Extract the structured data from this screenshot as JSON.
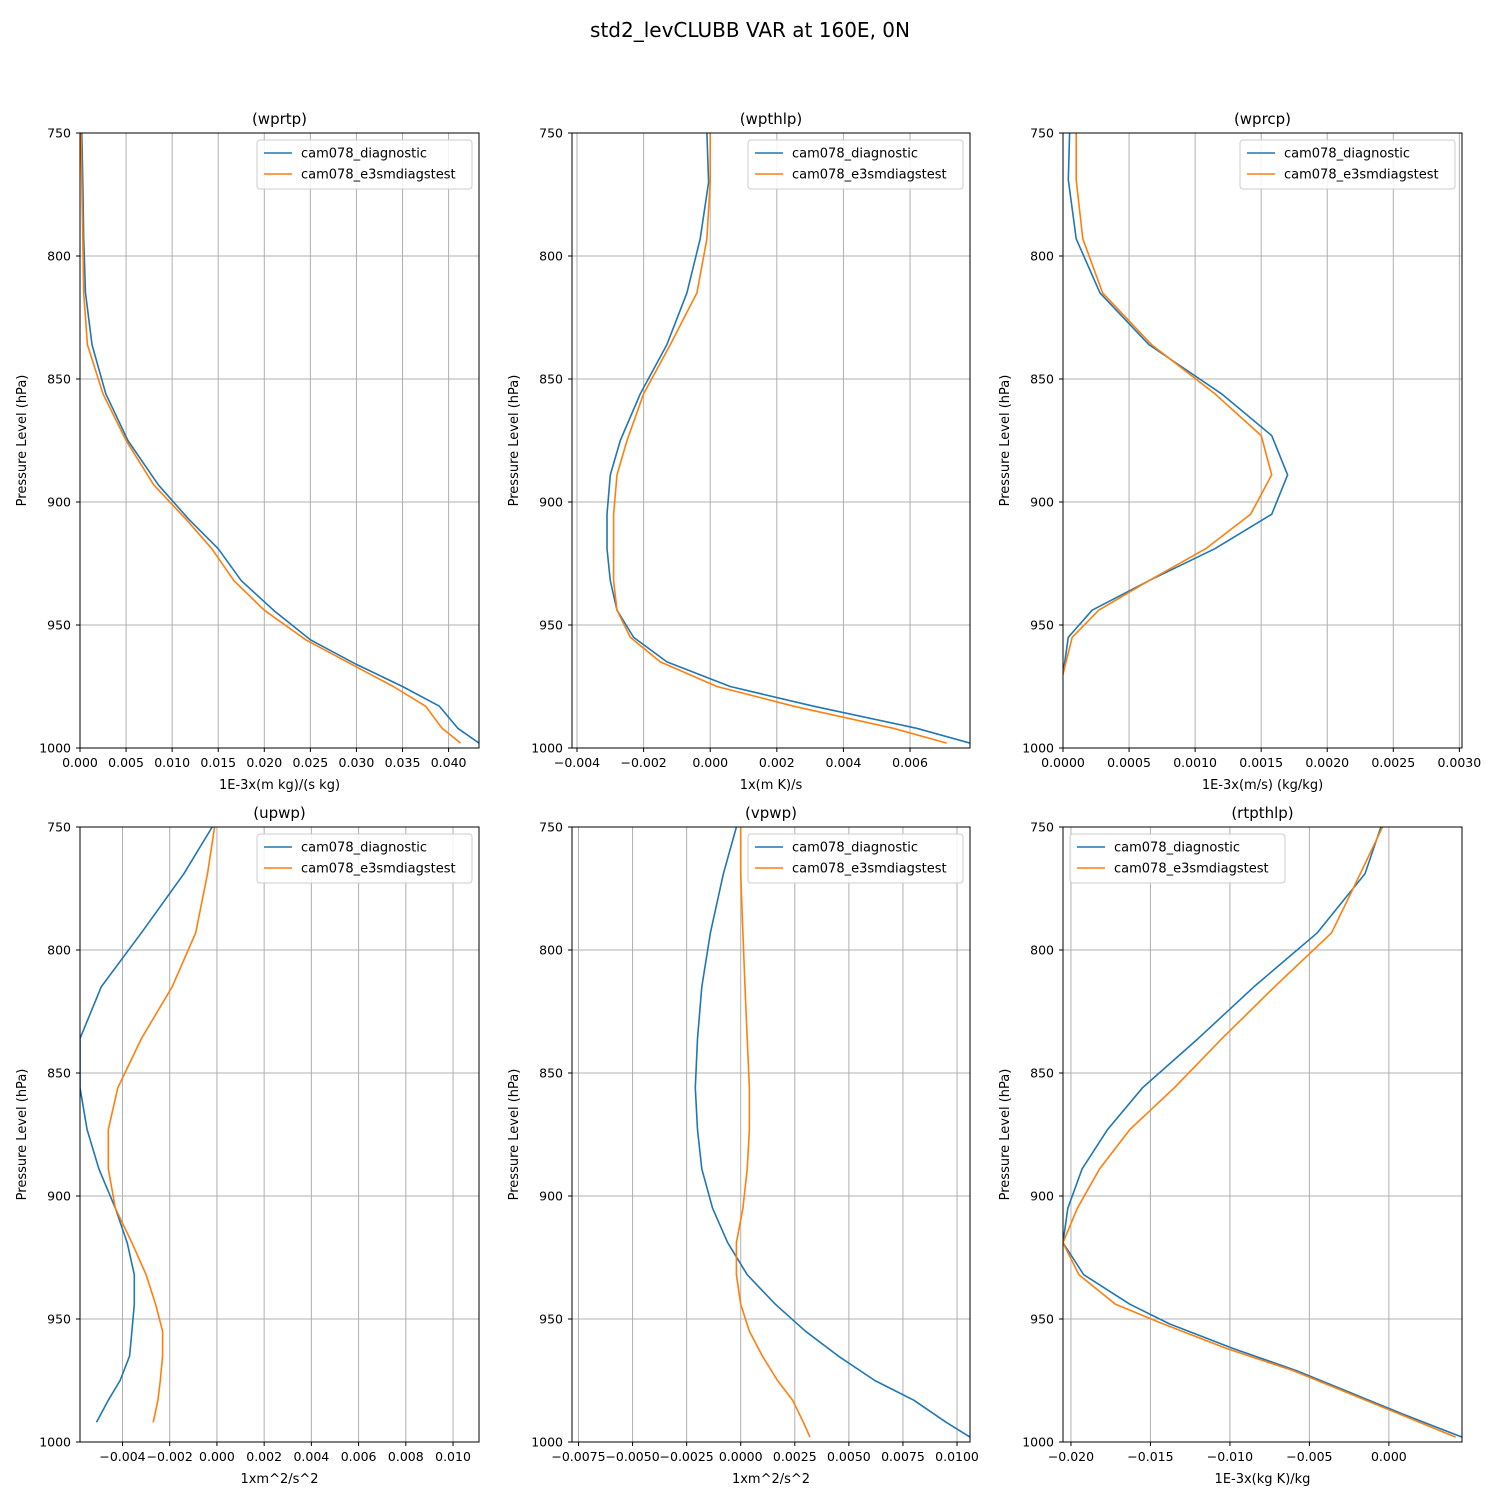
{
  "figure": {
    "suptitle": "std2_levCLUBB VAR at 160E, 0N"
  },
  "colors": {
    "cam078_diagnostic": "#1f77b4",
    "cam078_e3smdiagstest": "#ff7f0e",
    "grid": "#b0b0b0"
  },
  "chart_data": [
    {
      "type": "line",
      "title": "(wprtp)",
      "xlabel": "1E-3x(m kg)/(s kg)",
      "ylabel": "Pressure Level (hPa)",
      "xlim": [
        0,
        0.0433
      ],
      "ylim": [
        1000,
        750
      ],
      "xticks": [
        0,
        0.005,
        0.01,
        0.015,
        0.02,
        0.025,
        0.03,
        0.035,
        0.04
      ],
      "xticklabels": [
        "0.000",
        "0.005",
        "0.010",
        "0.015",
        "0.020",
        "0.025",
        "0.030",
        "0.035",
        "0.040"
      ],
      "yticks": [
        750,
        800,
        850,
        900,
        950,
        1000
      ],
      "grid": true,
      "legend": "top-right",
      "series": [
        {
          "name": "cam078_diagnostic",
          "x": [
            0.0002,
            0.0003,
            0.0004,
            0.0006,
            0.0013,
            0.0028,
            0.0052,
            0.0085,
            0.0118,
            0.015,
            0.0175,
            0.021,
            0.025,
            0.03,
            0.035,
            0.039,
            0.041,
            0.0433
          ],
          "y": [
            750,
            770,
            793,
            815,
            836,
            856,
            875,
            893,
            907,
            919,
            932,
            944,
            956,
            966,
            975,
            983,
            992,
            998
          ]
        },
        {
          "name": "cam078_e3smdiagstest",
          "x": [
            0.0001,
            0.0002,
            0.0003,
            0.0004,
            0.0008,
            0.0025,
            0.005,
            0.008,
            0.0115,
            0.0143,
            0.0167,
            0.02,
            0.0245,
            0.0295,
            0.034,
            0.0375,
            0.0393,
            0.0413
          ],
          "y": [
            750,
            770,
            793,
            815,
            836,
            856,
            875,
            893,
            907,
            919,
            932,
            944,
            956,
            966,
            975,
            983,
            992,
            998
          ]
        }
      ]
    },
    {
      "type": "line",
      "title": "(wpthlp)",
      "xlabel": "1x(m K)/s",
      "ylabel": "Pressure Level (hPa)",
      "xlim": [
        -0.00415,
        0.0078
      ],
      "ylim": [
        1000,
        750
      ],
      "xticks": [
        -0.004,
        -0.002,
        0,
        0.002,
        0.004,
        0.006
      ],
      "xticklabels": [
        "−0.004",
        "−0.002",
        "0.000",
        "0.002",
        "0.004",
        "0.006"
      ],
      "yticks": [
        750,
        800,
        850,
        900,
        950,
        1000
      ],
      "grid": true,
      "legend": "top-right",
      "series": [
        {
          "name": "cam078_diagnostic",
          "x": [
            -0.0001,
            -5e-05,
            -0.0003,
            -0.0007,
            -0.0013,
            -0.0021,
            -0.0027,
            -0.003,
            -0.0031,
            -0.0031,
            -0.003,
            -0.0028,
            -0.0023,
            -0.0013,
            0.0006,
            0.0031,
            0.0062,
            0.0078
          ],
          "y": [
            750,
            770,
            793,
            815,
            836,
            856,
            875,
            889,
            905,
            919,
            932,
            944,
            955,
            965,
            975,
            983,
            992,
            998
          ]
        },
        {
          "name": "cam078_e3smdiagstest",
          "x": [
            0.0,
            0.0,
            -0.0001,
            -0.0004,
            -0.0012,
            -0.002,
            -0.0025,
            -0.0028,
            -0.0029,
            -0.0029,
            -0.0029,
            -0.0028,
            -0.0024,
            -0.0015,
            0.0002,
            0.0025,
            0.0055,
            0.0071
          ],
          "y": [
            750,
            770,
            793,
            815,
            836,
            856,
            875,
            889,
            905,
            919,
            932,
            944,
            955,
            965,
            975,
            983,
            992,
            998
          ]
        }
      ]
    },
    {
      "type": "line",
      "title": "(wprcp)",
      "xlabel": "1E-3x(m/s) (kg/kg)",
      "ylabel": "Pressure Level (hPa)",
      "xlim": [
        0,
        0.00302
      ],
      "ylim": [
        1000,
        750
      ],
      "xticks": [
        0,
        0.0005,
        0.001,
        0.0015,
        0.002,
        0.0025,
        0.003
      ],
      "xticklabels": [
        "0.0000",
        "0.0005",
        "0.0010",
        "0.0015",
        "0.0020",
        "0.0025",
        "0.0030"
      ],
      "yticks": [
        750,
        800,
        850,
        900,
        950,
        1000
      ],
      "grid": true,
      "legend": "top-right",
      "series": [
        {
          "name": "cam078_diagnostic",
          "x": [
            5e-05,
            4e-05,
            0.0001,
            0.00028,
            0.00065,
            0.0012,
            0.00158,
            0.0017,
            0.00158,
            0.00115,
            0.00065,
            0.00022,
            4e-05,
            0.0
          ],
          "y": [
            750,
            769,
            793,
            815,
            836,
            856,
            873,
            889,
            905,
            919,
            932,
            944,
            955,
            970
          ]
        },
        {
          "name": "cam078_e3smdiagstest",
          "x": [
            0.0001,
            0.0001,
            0.00015,
            0.0003,
            0.00067,
            0.00115,
            0.0015,
            0.00158,
            0.00142,
            0.00108,
            0.00065,
            0.00027,
            7e-05,
            0.0
          ],
          "y": [
            750,
            769,
            793,
            815,
            836,
            856,
            873,
            889,
            905,
            919,
            932,
            944,
            955,
            970
          ]
        }
      ]
    },
    {
      "type": "line",
      "title": "(upwp)",
      "xlabel": "1xm^2/s^2",
      "ylabel": "Pressure Level (hPa)",
      "xlim": [
        -0.0058,
        0.0111
      ],
      "ylim": [
        1000,
        750
      ],
      "xticks": [
        -0.004,
        -0.002,
        0,
        0.002,
        0.004,
        0.006,
        0.008,
        0.01
      ],
      "xticklabels": [
        "−0.004",
        "−0.002",
        "0.000",
        "0.002",
        "0.004",
        "0.006",
        "0.008",
        "0.010"
      ],
      "yticks": [
        750,
        800,
        850,
        900,
        950,
        1000
      ],
      "grid": true,
      "legend": "top-right",
      "series": [
        {
          "name": "cam078_diagnostic",
          "x": [
            -0.0002,
            -0.0014,
            -0.0032,
            -0.0049,
            -0.0058,
            -0.0058,
            -0.0055,
            -0.005,
            -0.0043,
            -0.0038,
            -0.0035,
            -0.0035,
            -0.0036,
            -0.0037,
            -0.0041,
            -0.0046,
            -0.0051
          ],
          "y": [
            750,
            769,
            793,
            815,
            836,
            856,
            873,
            889,
            905,
            919,
            932,
            944,
            955,
            965,
            975,
            983,
            992
          ]
        },
        {
          "name": "cam078_e3smdiagstest",
          "x": [
            -0.0001,
            -0.0004,
            -0.0009,
            -0.0019,
            -0.0032,
            -0.0042,
            -0.0046,
            -0.0046,
            -0.0043,
            -0.0036,
            -0.003,
            -0.0026,
            -0.0023,
            -0.0023,
            -0.0024,
            -0.0025,
            -0.0027
          ],
          "y": [
            750,
            769,
            793,
            815,
            836,
            856,
            873,
            889,
            905,
            919,
            932,
            944,
            955,
            965,
            975,
            983,
            992
          ]
        }
      ]
    },
    {
      "type": "line",
      "title": "(vpwp)",
      "xlabel": "1xm^2/s^2",
      "ylabel": "Pressure Level (hPa)",
      "xlim": [
        -0.0078,
        0.0106
      ],
      "ylim": [
        1000,
        750
      ],
      "xticks": [
        -0.0075,
        -0.005,
        -0.0025,
        0,
        0.0025,
        0.005,
        0.0075,
        0.01
      ],
      "xticklabels": [
        "−0.0075",
        "−0.0050",
        "−0.0025",
        "0.0000",
        "0.0025",
        "0.0050",
        "0.0075",
        "0.0100"
      ],
      "yticks": [
        750,
        800,
        850,
        900,
        950,
        1000
      ],
      "grid": true,
      "legend": "top-right",
      "series": [
        {
          "name": "cam078_diagnostic",
          "x": [
            -0.0002,
            -0.0008,
            -0.0014,
            -0.0018,
            -0.002,
            -0.0021,
            -0.002,
            -0.0018,
            -0.0013,
            -0.0006,
            0.0003,
            0.0016,
            0.003,
            0.0045,
            0.0062,
            0.008,
            0.0095,
            0.0106
          ],
          "y": [
            750,
            769,
            793,
            815,
            836,
            856,
            873,
            889,
            905,
            919,
            932,
            944,
            955,
            965,
            975,
            983,
            992,
            998
          ]
        },
        {
          "name": "cam078_e3smdiagstest",
          "x": [
            0.0,
            0.0,
            0.0001,
            0.0002,
            0.0003,
            0.0004,
            0.0004,
            0.0003,
            0.0001,
            -0.0002,
            -0.0002,
            0.0,
            0.0004,
            0.001,
            0.0017,
            0.0024,
            0.0029,
            0.0032
          ],
          "y": [
            750,
            769,
            793,
            815,
            836,
            856,
            873,
            889,
            905,
            919,
            932,
            944,
            955,
            965,
            975,
            983,
            992,
            998
          ]
        }
      ]
    },
    {
      "type": "line",
      "title": "(rtpthlp)",
      "xlabel": "1E-3x(kg K)/kg",
      "ylabel": "Pressure Level (hPa)",
      "xlim": [
        -0.0205,
        0.0046
      ],
      "ylim": [
        1000,
        750
      ],
      "xticks": [
        -0.02,
        -0.015,
        -0.01,
        -0.005,
        0
      ],
      "xticklabels": [
        "−0.020",
        "−0.015",
        "−0.010",
        "−0.005",
        "0.000"
      ],
      "yticks": [
        750,
        800,
        850,
        900,
        950,
        1000
      ],
      "grid": true,
      "legend": "top-left",
      "series": [
        {
          "name": "cam078_diagnostic",
          "x": [
            -0.0005,
            -0.0015,
            -0.0045,
            -0.0085,
            -0.012,
            -0.0155,
            -0.0177,
            -0.0193,
            -0.0202,
            -0.0205,
            -0.0192,
            -0.0163,
            -0.0138,
            -0.0098,
            -0.0058,
            -0.0024,
            0.001,
            0.0046
          ],
          "y": [
            750,
            769,
            793,
            815,
            836,
            856,
            873,
            889,
            905,
            919,
            932,
            944,
            952,
            962,
            971,
            980,
            989,
            998
          ]
        },
        {
          "name": "cam078_e3smdiagstest",
          "x": [
            -0.0004,
            -0.0018,
            -0.0036,
            -0.0072,
            -0.0105,
            -0.0135,
            -0.0163,
            -0.0182,
            -0.0196,
            -0.0205,
            -0.0195,
            -0.0172,
            -0.0142,
            -0.0102,
            -0.006,
            -0.0026,
            0.0008,
            0.0042
          ],
          "y": [
            750,
            769,
            793,
            815,
            836,
            856,
            873,
            889,
            905,
            919,
            932,
            944,
            952,
            962,
            971,
            980,
            989,
            998
          ]
        }
      ]
    }
  ]
}
